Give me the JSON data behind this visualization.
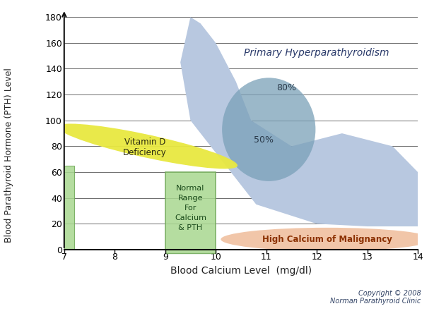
{
  "xlim": [
    7,
    14
  ],
  "ylim": [
    0,
    185
  ],
  "xticks": [
    7,
    8,
    9,
    10,
    11,
    12,
    13,
    14
  ],
  "yticks": [
    0,
    20,
    40,
    60,
    80,
    100,
    120,
    140,
    160,
    180
  ],
  "xlabel": "Blood Calcium Level  (mg/dl)",
  "ylabel": "Blood Parathyroid Hormone (PTH) Level",
  "bg_color": "#ffffff",
  "plot_bg_color": "#ffffff",
  "primary_hyper_label": "Primary Hyperparathyroidism",
  "primary_hyper_color": "#b8c8e0",
  "inner_hyper_color": "#7aa0b8",
  "pct80_label": "80%",
  "pct50_label": "50%",
  "vitd_label": "Vitamin D\nDeficiency",
  "vitd_color": "#e8e840",
  "normal_label": "Normal\nRange\nFor\nCalcium\n& PTH",
  "normal_color": "#a8d890",
  "normal_border_color": "#70a858",
  "malignancy_label": "High Calcium of Malignancy",
  "malignancy_color": "#f0c0a0",
  "copyright_text": "Copyright © 2008\nNorman Parathyroid Clinic",
  "grid_color": "#555555",
  "axis_color": "#111111",
  "left_bar_color": "#a8d890",
  "left_bar_border": "#70a858"
}
